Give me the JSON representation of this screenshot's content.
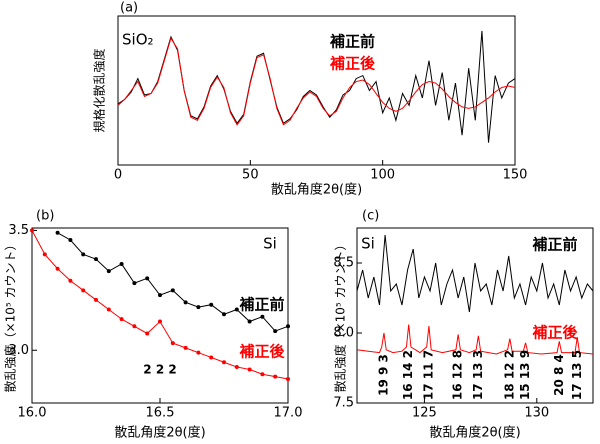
{
  "chart_data": [
    {
      "type": "line",
      "title": "(a)",
      "sample": "SiO₂",
      "xlabel": "散乱角度2θ(度)",
      "ylabel": "規格化散乱強度",
      "xlim": [
        0,
        150
      ],
      "xticks": [
        0,
        50,
        100,
        150
      ],
      "ylim": [
        0,
        1
      ],
      "x": [
        0,
        2.5,
        5,
        7.5,
        10,
        12.5,
        15,
        17.5,
        20,
        22.5,
        25,
        27.5,
        30,
        32.5,
        35,
        37.5,
        40,
        42.5,
        45,
        47.5,
        50,
        52.5,
        55,
        57.5,
        60,
        62.5,
        65,
        67.5,
        70,
        72.5,
        75,
        77.5,
        80,
        82.5,
        85,
        87.5,
        90,
        92.5,
        95,
        97.5,
        100,
        102.5,
        105,
        107.5,
        110,
        112.5,
        115,
        117.5,
        120,
        122.5,
        125,
        127.5,
        130,
        132.5,
        135,
        137.5,
        140,
        142.5,
        145,
        147.5,
        150
      ],
      "series": [
        {
          "name": "補正前",
          "color": "#000000",
          "values": [
            0.41,
            0.44,
            0.49,
            0.58,
            0.47,
            0.48,
            0.56,
            0.71,
            0.86,
            0.77,
            0.5,
            0.33,
            0.31,
            0.39,
            0.53,
            0.6,
            0.51,
            0.36,
            0.28,
            0.34,
            0.56,
            0.73,
            0.75,
            0.57,
            0.39,
            0.28,
            0.31,
            0.37,
            0.46,
            0.5,
            0.47,
            0.39,
            0.32,
            0.37,
            0.47,
            0.5,
            0.58,
            0.6,
            0.5,
            0.56,
            0.35,
            0.45,
            0.3,
            0.48,
            0.4,
            0.6,
            0.45,
            0.7,
            0.4,
            0.62,
            0.3,
            0.55,
            0.2,
            0.65,
            0.3,
            0.9,
            0.15,
            0.6,
            0.45,
            0.55,
            0.58
          ]
        },
        {
          "name": "補正後",
          "color": "#ff0000",
          "values": [
            0.4,
            0.44,
            0.5,
            0.56,
            0.46,
            0.48,
            0.55,
            0.7,
            0.85,
            0.78,
            0.5,
            0.32,
            0.3,
            0.38,
            0.52,
            0.59,
            0.52,
            0.35,
            0.27,
            0.33,
            0.55,
            0.72,
            0.74,
            0.58,
            0.38,
            0.27,
            0.3,
            0.38,
            0.45,
            0.49,
            0.46,
            0.38,
            0.33,
            0.36,
            0.45,
            0.52,
            0.56,
            0.57,
            0.54,
            0.48,
            0.42,
            0.38,
            0.36,
            0.38,
            0.43,
            0.49,
            0.54,
            0.56,
            0.55,
            0.51,
            0.46,
            0.42,
            0.39,
            0.38,
            0.39,
            0.42,
            0.45,
            0.49,
            0.52,
            0.53,
            0.52
          ]
        }
      ]
    },
    {
      "type": "line",
      "title": "(b)",
      "sample": "Si",
      "xlabel": "散乱角度2θ(度)",
      "ylabel": "散乱強度（×10⁵ カウント）",
      "xlim": [
        16.0,
        17.0
      ],
      "xticks": [
        {
          "value": 16.0,
          "label": "16.0"
        },
        16.5,
        {
          "value": 17.0,
          "label": "17.0"
        }
      ],
      "ylim": [
        2.78,
        3.51
      ],
      "yticks": [
        {
          "value": 3.0,
          "label": "3.0"
        },
        3.5
      ],
      "peak_labels": [
        {
          "text": "2 2 2",
          "x": 16.5
        }
      ],
      "x": [
        16.0,
        16.05,
        16.1,
        16.15,
        16.2,
        16.25,
        16.3,
        16.35,
        16.4,
        16.45,
        16.5,
        16.55,
        16.6,
        16.65,
        16.7,
        16.75,
        16.8,
        16.85,
        16.9,
        16.95,
        17.0
      ],
      "series": [
        {
          "name": "補正前",
          "color": "#000000",
          "values": [
            null,
            null,
            3.49,
            3.46,
            3.4,
            3.38,
            3.33,
            3.36,
            3.28,
            3.3,
            3.23,
            3.25,
            3.2,
            3.18,
            3.19,
            3.15,
            3.17,
            3.12,
            3.14,
            3.08,
            3.1
          ]
        },
        {
          "name": "補正後",
          "color": "#ff0000",
          "values": [
            3.5,
            3.4,
            3.34,
            3.29,
            3.25,
            3.21,
            3.17,
            3.13,
            3.1,
            3.07,
            3.12,
            3.03,
            3.01,
            2.99,
            2.97,
            2.95,
            2.93,
            2.92,
            2.9,
            2.89,
            2.88
          ]
        }
      ]
    },
    {
      "type": "line",
      "title": "(c)",
      "sample": "Si",
      "xlabel": "散乱角度2θ(度)",
      "ylabel": "散乱強度（×10⁵ カウント）",
      "xlim": [
        122,
        132.5
      ],
      "xticks": [
        125,
        130
      ],
      "ylim": [
        7.5,
        8.75
      ],
      "yticks": [
        7.5,
        {
          "value": 8.0,
          "label": "8.0"
        },
        8.5
      ],
      "peak_labels": [
        {
          "text": "19 9 3",
          "x": 123.2
        },
        {
          "text": "16 14 2",
          "x": 124.3
        },
        {
          "text": "17 11 7",
          "x": 125.2
        },
        {
          "text": "16 12 8",
          "x": 126.5
        },
        {
          "text": "17 13 3",
          "x": 127.4
        },
        {
          "text": "18 12 2",
          "x": 128.8
        },
        {
          "text": "15 13 9",
          "x": 129.5
        },
        {
          "text": "20 8 4",
          "x": 131.0
        },
        {
          "text": "17 13 5",
          "x": 131.8
        }
      ],
      "series": [
        {
          "name": "補正前",
          "color": "#000000",
          "x": [
            122,
            122.25,
            122.5,
            122.75,
            123,
            123.25,
            123.5,
            123.75,
            124,
            124.25,
            124.5,
            124.75,
            125,
            125.25,
            125.5,
            125.75,
            126,
            126.25,
            126.5,
            126.75,
            127,
            127.25,
            127.5,
            127.75,
            128,
            128.25,
            128.5,
            128.75,
            129,
            129.25,
            129.5,
            129.75,
            130,
            130.25,
            130.5,
            130.75,
            131,
            131.25,
            131.5,
            131.75,
            132,
            132.25,
            132.5
          ],
          "values": [
            8.3,
            8.45,
            8.25,
            8.4,
            8.2,
            8.7,
            8.3,
            8.35,
            8.2,
            8.45,
            8.6,
            8.25,
            8.4,
            8.3,
            8.5,
            8.2,
            8.35,
            8.45,
            8.25,
            8.4,
            8.15,
            8.5,
            8.3,
            8.35,
            8.2,
            8.45,
            8.3,
            8.55,
            8.25,
            8.35,
            8.2,
            8.4,
            8.3,
            8.5,
            8.25,
            8.35,
            8.2,
            8.45,
            8.3,
            8.4,
            8.25,
            8.35,
            8.3
          ]
        },
        {
          "name": "補正後",
          "color": "#ff0000",
          "x": [
            122,
            122.5,
            123,
            123.1,
            123.2,
            123.3,
            123.6,
            124,
            124.2,
            124.3,
            124.4,
            124.8,
            125.1,
            125.2,
            125.3,
            125.8,
            126.4,
            126.5,
            126.6,
            127,
            127.3,
            127.4,
            127.5,
            128.2,
            128.7,
            128.8,
            128.9,
            129.4,
            129.5,
            129.6,
            130.2,
            130.9,
            131,
            131.1,
            131.7,
            131.8,
            131.9,
            132.5
          ],
          "values": [
            7.88,
            7.87,
            7.86,
            7.9,
            8.0,
            7.88,
            7.86,
            7.87,
            7.9,
            8.06,
            7.9,
            7.86,
            7.9,
            8.05,
            7.88,
            7.86,
            7.88,
            7.99,
            7.88,
            7.86,
            7.88,
            7.98,
            7.87,
            7.85,
            7.88,
            7.96,
            7.87,
            7.87,
            7.93,
            7.86,
            7.85,
            7.86,
            7.94,
            7.86,
            7.86,
            7.97,
            7.86,
            7.85
          ]
        }
      ]
    }
  ]
}
